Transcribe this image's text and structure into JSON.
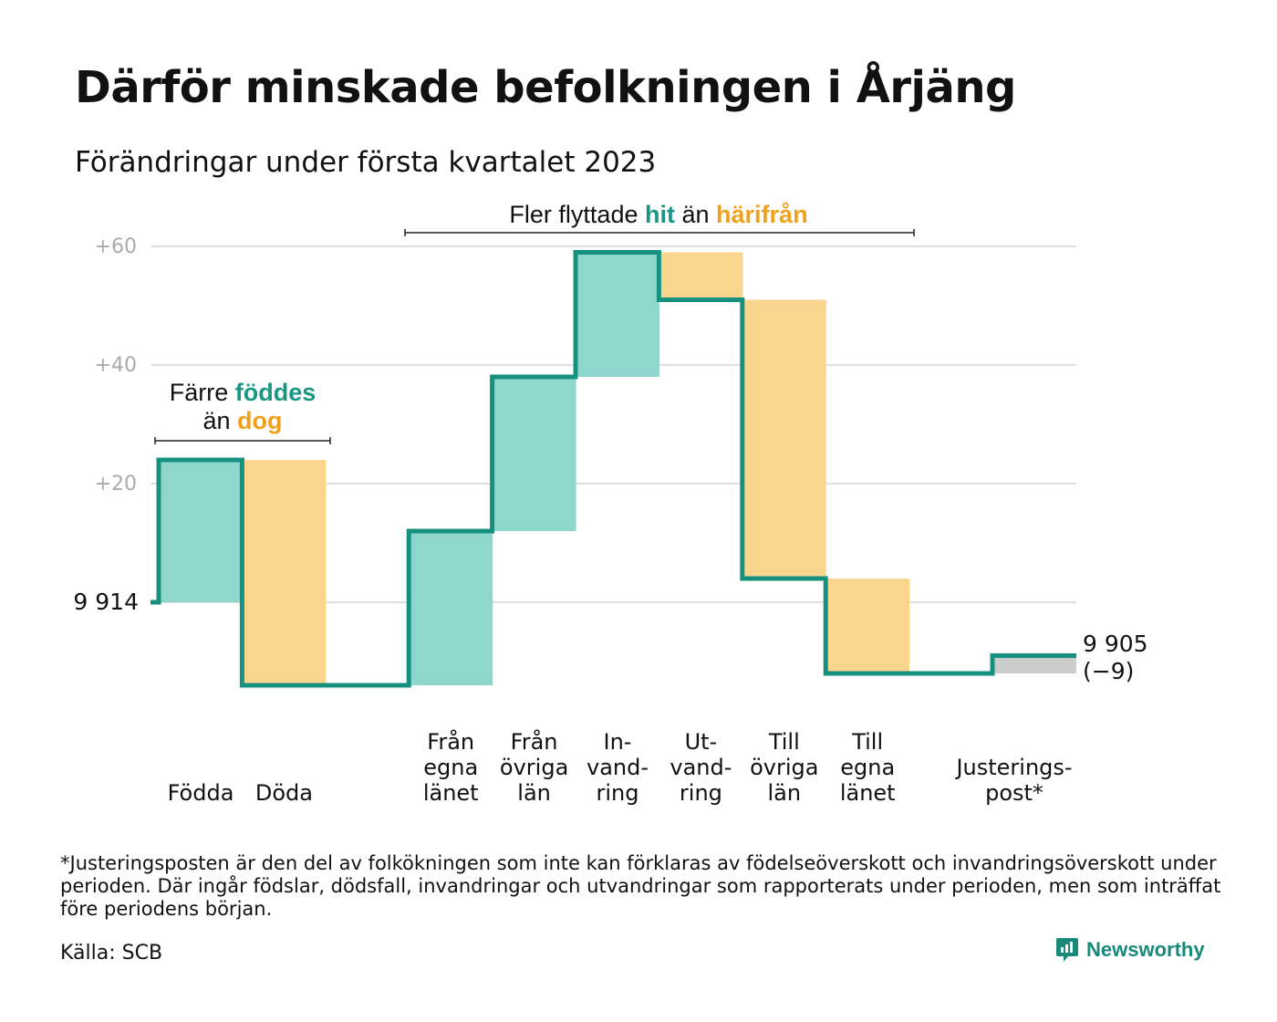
{
  "header": {
    "title": "Därför minskade befolkningen i Årjäng",
    "subtitle": "Förändringar under första kvartalet 2023"
  },
  "colors": {
    "increase": "#8fd6cc",
    "decrease": "#f9d58e",
    "adjustment": "#cccccc",
    "line": "#17917f",
    "accent_teal": "#1a9784",
    "accent_orange": "#f0a11c",
    "grid": "#e0e0e0",
    "tick_text": "#aaaaaa"
  },
  "annotations": {
    "left": {
      "line1_pre": "Färre ",
      "line1_em": "föddes",
      "line2_pre": "än ",
      "line2_em": "dog"
    },
    "right": {
      "pre": "Fler flyttade ",
      "em1": "hit",
      "mid": " än ",
      "em2": "härifrån"
    }
  },
  "chart_data": {
    "type": "waterfall",
    "title": "Därför minskade befolkningen i Årjäng",
    "subtitle": "Förändringar under första kvartalet 2023",
    "start_value": 9914,
    "start_label": "9 914",
    "end_value": 9905,
    "end_label": "9 905",
    "end_change_label": "(−9)",
    "y_axis": {
      "relative_to": 9914,
      "ticks": [
        20,
        40,
        60
      ],
      "tick_labels": [
        "+20",
        "+40",
        "+60"
      ],
      "ylim": [
        -18,
        62
      ]
    },
    "steps": [
      {
        "label": [
          "Födda"
        ],
        "change": 24,
        "kind": "increase"
      },
      {
        "label": [
          "Döda"
        ],
        "change": -38,
        "kind": "decrease"
      },
      {
        "label": [],
        "change": 0,
        "kind": "gap"
      },
      {
        "label": [
          "Från",
          "egna",
          "länet"
        ],
        "change": 26,
        "kind": "increase"
      },
      {
        "label": [
          "Från",
          "övriga",
          "län"
        ],
        "change": 26,
        "kind": "increase"
      },
      {
        "label": [
          "In-",
          "vand-",
          "ring"
        ],
        "change": 21,
        "kind": "increase"
      },
      {
        "label": [
          "Ut-",
          "vand-",
          "ring"
        ],
        "change": -8,
        "kind": "decrease"
      },
      {
        "label": [
          "Till",
          "övriga",
          "län"
        ],
        "change": -47,
        "kind": "decrease"
      },
      {
        "label": [
          "Till",
          "egna",
          "länet"
        ],
        "change": -16,
        "kind": "decrease"
      },
      {
        "label": [],
        "change": 0,
        "kind": "gap"
      },
      {
        "label": [
          "Justerings-",
          "post*"
        ],
        "change": 3,
        "kind": "adjustment"
      }
    ],
    "source": "Källa: SCB"
  },
  "footer": {
    "footnote": "*Justeringsposten är den del av folkökningen som inte kan förklaras av födelseöverskott och invandringsöverskott under perioden. Där ingår födslar, dödsfall, invandringar och utvandringar som rapporterats under perioden, men som inträffat före periodens början.",
    "source": "Källa: SCB",
    "brand": "Newsworthy",
    "brand_icon": "bar-chart-speech-bubble-icon"
  }
}
